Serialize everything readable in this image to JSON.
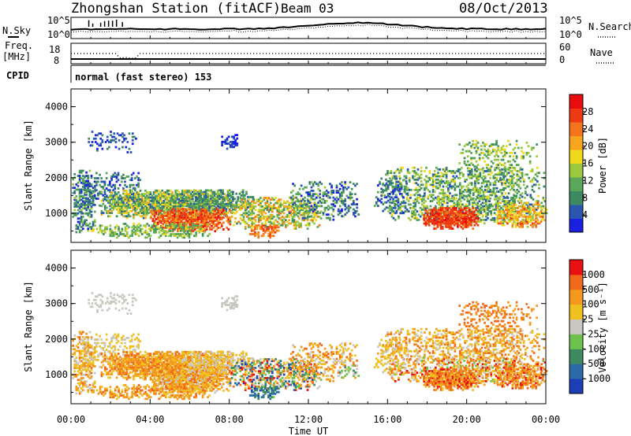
{
  "header": {
    "station_title": "Zhongshan Station (fitACF)",
    "beam": "Beam 03",
    "date": "08/Oct/2013"
  },
  "summary": {
    "nsky_label": "N.Sky",
    "nsearch_label": "N.Search",
    "noise_ticks": [
      "10^5",
      "10^0"
    ],
    "freq_label_1": "Freq.",
    "freq_label_2": "[MHz]",
    "freq_ticks": [
      "18",
      "8"
    ],
    "nave_label": "Nave",
    "nave_ticks": [
      "60",
      "0"
    ],
    "cpid_label": "CPID",
    "cpid_text": "normal (fast stereo) 153"
  },
  "colors": {
    "power_scale": [
      "#1a20e0",
      "#2a56b0",
      "#3d8a62",
      "#5aa75a",
      "#9ac93f",
      "#f0d81a",
      "#f7a51e",
      "#f3741c",
      "#ee3a13",
      "#e80c0c"
    ],
    "velocity_scale": [
      "#1c3fb8",
      "#2a6aa8",
      "#3d8a62",
      "#6cc24a",
      "#c8c8c0",
      "#f0c020",
      "#f39a1e",
      "#f06a1c",
      "#e81010"
    ]
  },
  "chart_data": [
    {
      "type": "heatmap",
      "panel": "power",
      "ylabel": "Slant Range [km]",
      "ylim": [
        180,
        4500
      ],
      "yticks": [
        "4000",
        "3000",
        "2000",
        "1000"
      ],
      "xticks": [
        "00:00",
        "04:00",
        "08:00",
        "12:00",
        "16:00",
        "20:00",
        "00:00"
      ],
      "xlim": [
        "2013-10-08 00:00",
        "2013-10-09 00:00"
      ],
      "colorbar_label": "Power [dB]",
      "colorbar_ticks": [
        "28",
        "24",
        "20",
        "16",
        "12",
        "8",
        "4"
      ],
      "colorbar_range": [
        0,
        32
      ]
    },
    {
      "type": "heatmap",
      "panel": "velocity",
      "ylabel": "Slant Range [km]",
      "ylim": [
        180,
        4500
      ],
      "yticks": [
        "4000",
        "3000",
        "2000",
        "1000"
      ],
      "xticks": [
        "00:00",
        "04:00",
        "08:00",
        "12:00",
        "16:00",
        "20:00",
        "00:00"
      ],
      "xlabel": "Time UT",
      "xlim": [
        "2013-10-08 00:00",
        "2013-10-09 00:00"
      ],
      "colorbar_label": "Velocity [m s⁻¹]",
      "colorbar_ticks": [
        "1000",
        "500",
        "100",
        "25",
        "-25",
        "-100",
        "-500",
        "-1000"
      ]
    }
  ]
}
